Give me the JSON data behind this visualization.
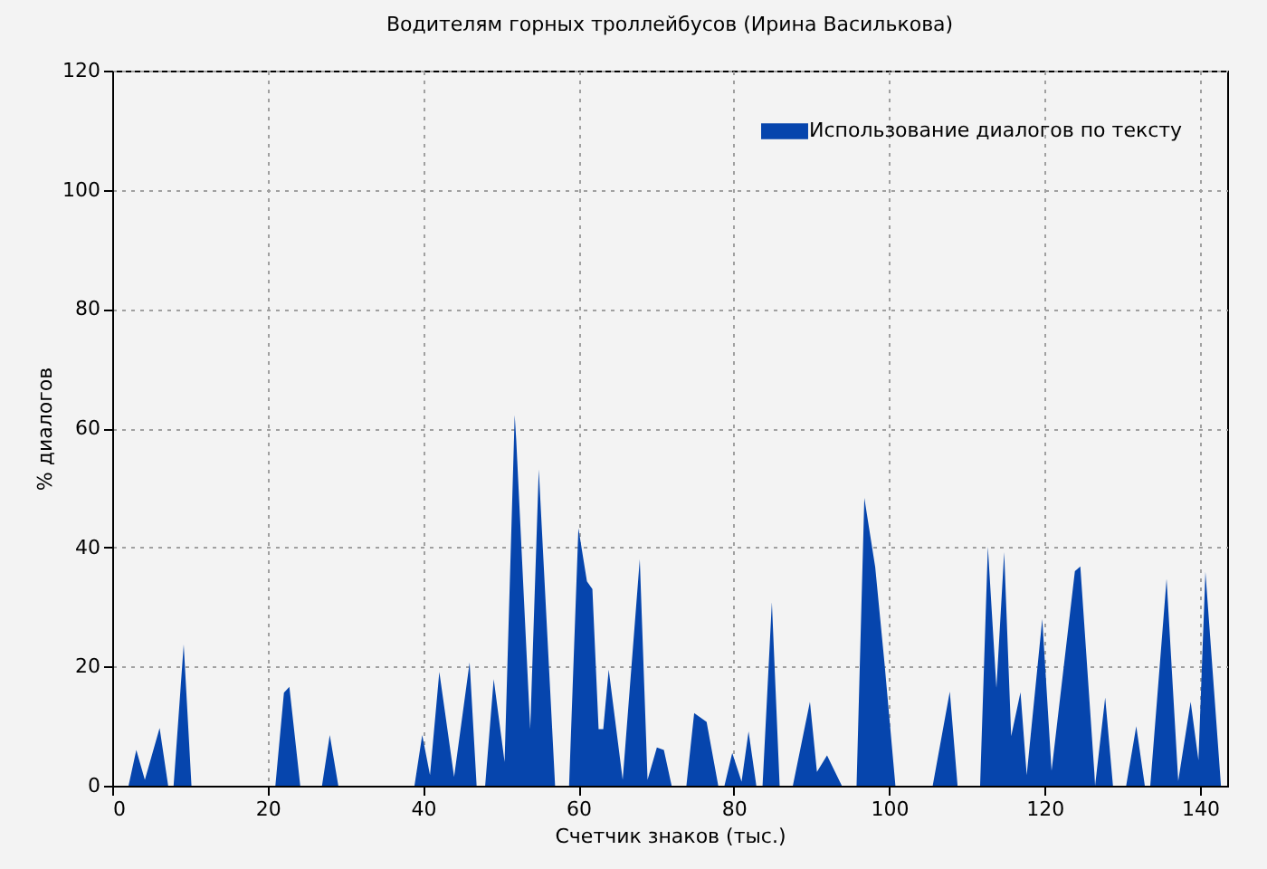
{
  "chart_data": {
    "type": "area",
    "title": "Водителям горных троллейбусов (Ирина Василькова)",
    "xlabel": "Счетчик знаков (тыс.)",
    "ylabel": "% диалогов",
    "x": [
      2.1,
      3.1,
      4.2,
      6.1,
      7.2,
      7.9,
      9.2,
      10.2,
      21.0,
      22.1,
      22.8,
      24.2,
      27.0,
      28.0,
      29.1,
      38.9,
      39.9,
      40.9,
      42.1,
      44.0,
      46.0,
      46.9,
      48.0,
      49.1,
      50.5,
      51.8,
      52.0,
      53.8,
      54.9,
      57.0,
      58.8,
      60.0,
      61.1,
      61.8,
      62.6,
      63.2,
      63.9,
      65.7,
      67.9,
      68.9,
      70.1,
      71.0,
      72.0,
      73.9,
      74.9,
      76.5,
      78.0,
      78.8,
      79.8,
      81.0,
      81.9,
      82.9,
      83.7,
      84.9,
      85.9,
      87.6,
      89.8,
      90.7,
      92.0,
      93.9,
      95.8,
      96.8,
      98.2,
      99.4,
      100.8,
      105.6,
      107.8,
      108.8,
      111.7,
      112.7,
      113.8,
      114.8,
      115.7,
      116.9,
      117.7,
      119.7,
      120.9,
      123.9,
      124.6,
      126.4,
      126.5,
      127.8,
      128.8,
      130.5,
      131.8,
      132.9,
      133.6,
      135.7,
      137.2,
      138.8,
      139.8,
      140.7,
      142.7
    ],
    "series": [
      {
        "name": "Использование диалогов по тексту",
        "color": "#0645ad",
        "values": [
          0,
          6,
          1,
          9.7,
          0,
          0,
          23.7,
          0,
          0,
          15.6,
          16.6,
          0,
          0,
          8.5,
          0,
          0,
          8.5,
          1.8,
          19.1,
          1.5,
          20.7,
          0,
          0,
          17.9,
          4,
          62.2,
          58,
          9.5,
          53.1,
          0,
          0,
          43.2,
          34.3,
          33,
          9.5,
          9.5,
          19.5,
          1,
          38,
          1,
          6.4,
          6,
          0,
          0,
          12.2,
          10.7,
          0,
          0,
          5.5,
          0.7,
          9.1,
          0,
          0,
          30.8,
          0,
          0,
          14.1,
          2.3,
          5.1,
          0,
          0,
          48.3,
          36.7,
          20.5,
          0,
          0,
          15.8,
          0,
          0,
          40.1,
          16.4,
          39.2,
          8.3,
          15.7,
          1.8,
          28,
          2.5,
          36,
          36.8,
          2.3,
          0,
          14.8,
          0,
          0,
          10,
          0,
          0,
          34.7,
          0.8,
          14.1,
          4.3,
          35.9,
          0
        ]
      }
    ],
    "xlim": [
      0,
      143.5
    ],
    "xticks": [
      0,
      20,
      40,
      60,
      80,
      100,
      120,
      140
    ],
    "ylim": [
      0,
      120
    ],
    "yticks": [
      0,
      20,
      40,
      60,
      80,
      100,
      120
    ],
    "grid": true,
    "legend": "top right"
  }
}
